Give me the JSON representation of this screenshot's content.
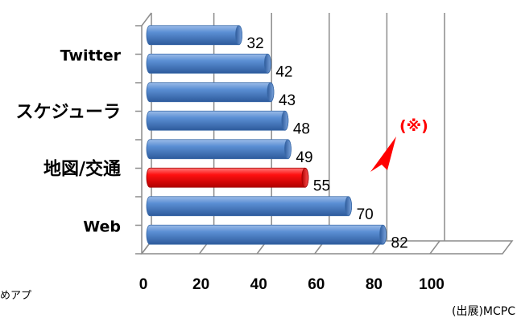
{
  "chart_data": {
    "type": "bar",
    "orientation": "horizontal",
    "style": "3d-cylinder",
    "categories": [
      "",
      "Twitter",
      "",
      "スケジューラ",
      "",
      "地図/交通",
      "",
      "Web"
    ],
    "values": [
      32,
      42,
      43,
      48,
      49,
      55,
      70,
      82
    ],
    "xlim": [
      0,
      100
    ],
    "xticks": [
      "0",
      "20",
      "40",
      "60",
      "80",
      "100"
    ],
    "grid": true,
    "colors": {
      "default": "#4f81bd",
      "highlight": "#ff0000"
    },
    "highlight_index": 5,
    "annotation": "(※)",
    "footer_fragment": "めアプ",
    "source": "(出展)MCPC"
  }
}
